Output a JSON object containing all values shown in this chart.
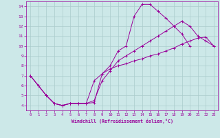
{
  "background_color": "#cce8e8",
  "grid_color": "#aacccc",
  "line_color": "#990099",
  "xlabel": "Windchill (Refroidissement éolien,°C)",
  "xlim": [
    -0.5,
    23.5
  ],
  "ylim": [
    3.5,
    14.5
  ],
  "xticks": [
    0,
    1,
    2,
    3,
    4,
    5,
    6,
    7,
    8,
    9,
    10,
    11,
    12,
    13,
    14,
    15,
    16,
    17,
    18,
    19,
    20,
    21,
    22,
    23
  ],
  "yticks": [
    4,
    5,
    6,
    7,
    8,
    9,
    10,
    11,
    12,
    13,
    14
  ],
  "curve1_x": [
    0,
    1,
    2,
    3,
    4,
    5,
    6,
    7,
    8,
    9,
    10,
    11,
    12,
    13,
    14,
    15,
    16,
    17,
    18,
    19,
    20
  ],
  "curve1_y": [
    7.0,
    6.0,
    5.0,
    4.2,
    4.0,
    4.2,
    4.2,
    4.2,
    4.3,
    7.2,
    8.0,
    9.5,
    10.0,
    13.0,
    14.2,
    14.2,
    13.5,
    12.8,
    12.0,
    11.2,
    10.0
  ],
  "curve2_x": [
    0,
    1,
    2,
    3,
    4,
    5,
    6,
    7,
    8,
    9,
    10,
    11,
    12,
    13,
    14,
    15,
    16,
    17,
    18,
    19,
    20,
    21,
    22,
    23
  ],
  "curve2_y": [
    7.0,
    6.0,
    5.0,
    4.2,
    4.0,
    4.2,
    4.2,
    4.2,
    6.5,
    7.2,
    7.7,
    8.0,
    8.2,
    8.5,
    8.7,
    9.0,
    9.2,
    9.5,
    9.8,
    10.2,
    10.5,
    10.8,
    10.9,
    10.0
  ],
  "curve3_x": [
    0,
    1,
    2,
    3,
    4,
    5,
    6,
    7,
    8,
    9,
    10,
    11,
    12,
    13,
    14,
    15,
    16,
    17,
    18,
    19,
    20,
    21,
    22,
    23
  ],
  "curve3_y": [
    7.0,
    6.0,
    5.0,
    4.2,
    4.0,
    4.2,
    4.2,
    4.2,
    4.5,
    6.5,
    7.5,
    8.5,
    9.0,
    9.5,
    10.0,
    10.5,
    11.0,
    11.5,
    12.0,
    12.5,
    12.0,
    11.0,
    10.5,
    10.0
  ]
}
